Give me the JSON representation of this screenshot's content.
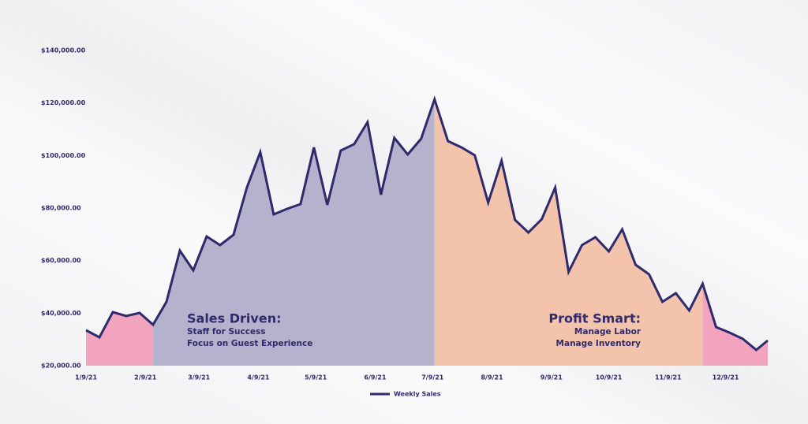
{
  "chart_data": {
    "type": "line",
    "x": [
      "2021-01-09",
      "2021-01-16",
      "2021-01-23",
      "2021-01-30",
      "2021-02-06",
      "2021-02-13",
      "2021-02-20",
      "2021-02-27",
      "2021-03-06",
      "2021-03-13",
      "2021-03-20",
      "2021-03-27",
      "2021-04-03",
      "2021-04-10",
      "2021-04-17",
      "2021-04-24",
      "2021-05-01",
      "2021-05-08",
      "2021-05-15",
      "2021-05-22",
      "2021-05-29",
      "2021-06-05",
      "2021-06-12",
      "2021-06-19",
      "2021-06-26",
      "2021-07-03",
      "2021-07-10",
      "2021-07-17",
      "2021-07-24",
      "2021-07-31",
      "2021-08-07",
      "2021-08-14",
      "2021-08-21",
      "2021-08-28",
      "2021-09-04",
      "2021-09-11",
      "2021-09-18",
      "2021-09-25",
      "2021-10-02",
      "2021-10-09",
      "2021-10-16",
      "2021-10-23",
      "2021-10-30",
      "2021-11-06",
      "2021-11-13",
      "2021-11-20",
      "2021-11-27",
      "2021-12-04",
      "2021-12-11",
      "2021-12-18",
      "2021-12-25",
      "2021-12-31"
    ],
    "series": [
      {
        "name": "Weekly Sales",
        "color": "#2e2a6b",
        "values": [
          33500,
          30800,
          40400,
          38900,
          40100,
          35600,
          44300,
          63800,
          56300,
          69200,
          65900,
          69800,
          87800,
          101300,
          77600,
          79700,
          81500,
          103100,
          81200,
          101900,
          104300,
          112700,
          85100,
          106700,
          100400,
          106400,
          121400,
          105500,
          103100,
          100100,
          82100,
          98000,
          75500,
          70700,
          75800,
          87800,
          55700,
          65900,
          68900,
          63500,
          71900,
          58400,
          54800,
          44300,
          47600,
          41000,
          51200,
          34700,
          32600,
          30200,
          26000,
          29600
        ]
      }
    ],
    "xlim": [
      "2021-01-09",
      "2021-12-31"
    ],
    "xticks": [
      {
        "value": "2021-01-09",
        "label": "1/9/21"
      },
      {
        "value": "2021-02-09",
        "label": "2/9/21"
      },
      {
        "value": "2021-03-09",
        "label": "3/9/21"
      },
      {
        "value": "2021-04-09",
        "label": "4/9/21"
      },
      {
        "value": "2021-05-09",
        "label": "5/9/21"
      },
      {
        "value": "2021-06-09",
        "label": "6/9/21"
      },
      {
        "value": "2021-07-09",
        "label": "7/9/21"
      },
      {
        "value": "2021-08-09",
        "label": "8/9/21"
      },
      {
        "value": "2021-09-09",
        "label": "9/9/21"
      },
      {
        "value": "2021-10-09",
        "label": "10/9/21"
      },
      {
        "value": "2021-11-09",
        "label": "11/9/21"
      },
      {
        "value": "2021-12-09",
        "label": "12/9/21"
      }
    ],
    "ylim": [
      20000,
      140000
    ],
    "yticks": [
      {
        "value": 20000,
        "label": "$20,000.00"
      },
      {
        "value": 40000,
        "label": "$40,000.00"
      },
      {
        "value": 60000,
        "label": "$60,000.00"
      },
      {
        "value": 80000,
        "label": "$80,000.00"
      },
      {
        "value": 100000,
        "label": "$100,000.00"
      },
      {
        "value": 120000,
        "label": "$120,000.00"
      },
      {
        "value": 140000,
        "label": "$140,000.00"
      }
    ],
    "regions": [
      {
        "from": "2021-01-09",
        "to": "2021-02-13",
        "color": "#f2a3bd"
      },
      {
        "from": "2021-02-13",
        "to": "2021-07-10",
        "color": "#b4b2cc"
      },
      {
        "from": "2021-07-10",
        "to": "2021-11-27",
        "color": "#f3c3ac"
      },
      {
        "from": "2021-11-27",
        "to": "2021-12-31",
        "color": "#f2a3bd"
      }
    ],
    "annotations": [
      {
        "title": "Sales Driven:",
        "lines": [
          "Staff for Success",
          "Focus on Guest Experience"
        ]
      },
      {
        "title": "Profit Smart:",
        "lines": [
          "Manage Labor",
          "Manage Inventory"
        ]
      }
    ]
  }
}
